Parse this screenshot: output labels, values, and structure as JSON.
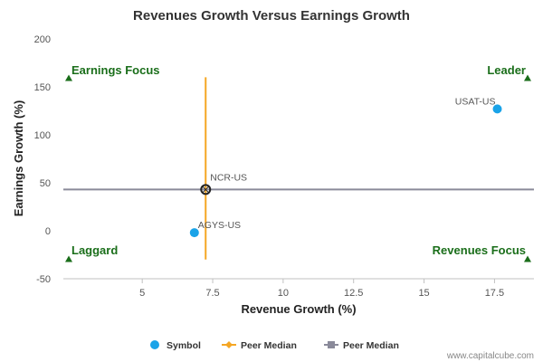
{
  "chart_data": {
    "type": "scatter",
    "title": "Revenues Growth Versus Earnings Growth",
    "xlabel": "Revenue Growth (%)",
    "ylabel": "Earnings Growth (%)",
    "xlim": [
      2.2,
      18.9
    ],
    "ylim": [
      -50,
      200
    ],
    "x_ticks": [
      5,
      7.5,
      10,
      12.5,
      15,
      17.5
    ],
    "x_tick_labels": [
      "5",
      "7.5",
      "10",
      "12.5",
      "15",
      "17.5"
    ],
    "y_ticks": [
      -50,
      0,
      50,
      100,
      150,
      200
    ],
    "y_tick_labels": [
      "-50",
      "0",
      "50",
      "100",
      "150",
      "200"
    ],
    "points": [
      {
        "label": "USAT-US",
        "x": 17.6,
        "y": 127
      },
      {
        "label": "AGYS-US",
        "x": 6.85,
        "y": -2
      },
      {
        "label": "NCR-US",
        "x": 7.25,
        "y": 43,
        "highlight": true
      }
    ],
    "peer_median_x": 7.25,
    "peer_median_y": 43,
    "vline_range": [
      -30,
      160
    ],
    "quadrant_labels": [
      {
        "text": "Earnings Focus",
        "position": "top-left"
      },
      {
        "text": "Leader",
        "position": "top-right"
      },
      {
        "text": "Laggard",
        "position": "bottom-left"
      },
      {
        "text": "Revenues Focus",
        "position": "bottom-right"
      }
    ],
    "legend": [
      {
        "label": "Symbol",
        "marker": "circle"
      },
      {
        "label": "Peer Median",
        "marker": "diamond-line"
      },
      {
        "label": "Peer Median",
        "marker": "square-line"
      }
    ],
    "legend_placement": "bottom-center",
    "colors": {
      "symbol": "#1aa3e8",
      "vline": "#f5a623",
      "hline": "#8a8a9a",
      "quadrant": "#1a6e1a",
      "highlight_stroke": "#222222"
    }
  },
  "credit": "www.capitalcube.com"
}
